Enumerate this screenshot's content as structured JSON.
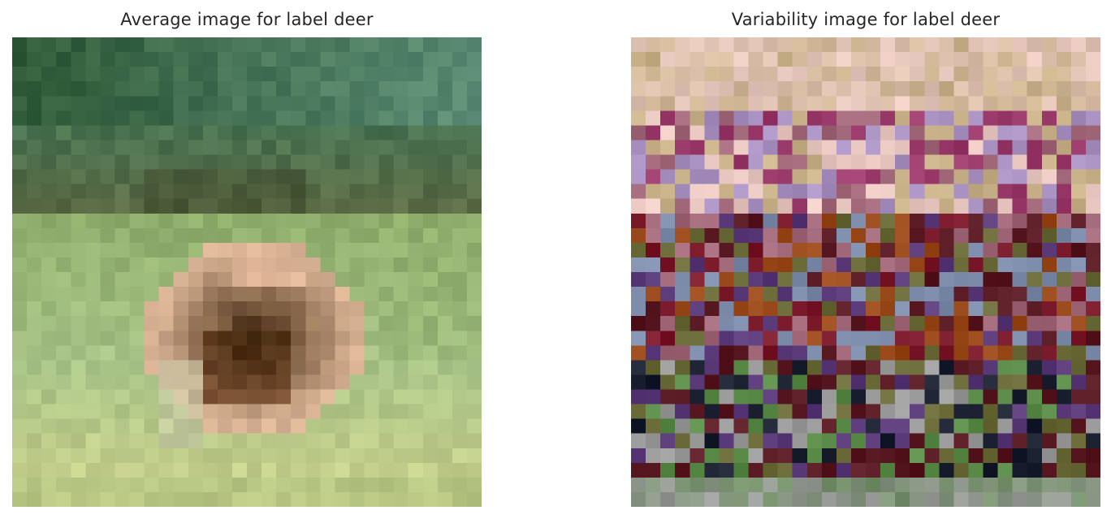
{
  "figure": {
    "panels": [
      {
        "title": "Average image for label deer",
        "image_name": "average-deer-image",
        "grid": 32,
        "palette": {
          "sky_dark": "#2f5a38",
          "sky_teal": "#5b8c74",
          "sky_mid": "#4a7250",
          "brush_dark": "#3f4a2c",
          "brush_mid": "#5e6a44",
          "grass_green": "#8fae6c",
          "grass_light": "#a9c487",
          "grass_yellow": "#cfd38e",
          "deer_light": "#d9b394",
          "deer_pink": "#f2c2a5",
          "deer_mid": "#9a6848",
          "deer_dark": "#5a3418",
          "deer_shadow": "#3c2208",
          "pale_gray": "#c8c8a8"
        }
      },
      {
        "title": "Variability image for label deer",
        "image_name": "variability-deer-image",
        "grid": 32,
        "palette": {
          "pink_light": "#e8c8c0",
          "tan": "#c8b088",
          "mauve": "#a06878",
          "magenta": "#9a3a6a",
          "crimson": "#7a1a2a",
          "maroon": "#5a1a24",
          "purple": "#5a3a78",
          "lavender": "#a890c0",
          "steel_blue": "#7a8aa8",
          "navy": "#1a2030",
          "olive": "#6a6a38",
          "green": "#5a8a48",
          "gray": "#9a9a9a",
          "orange_brown": "#9a4a1a"
        }
      }
    ]
  }
}
